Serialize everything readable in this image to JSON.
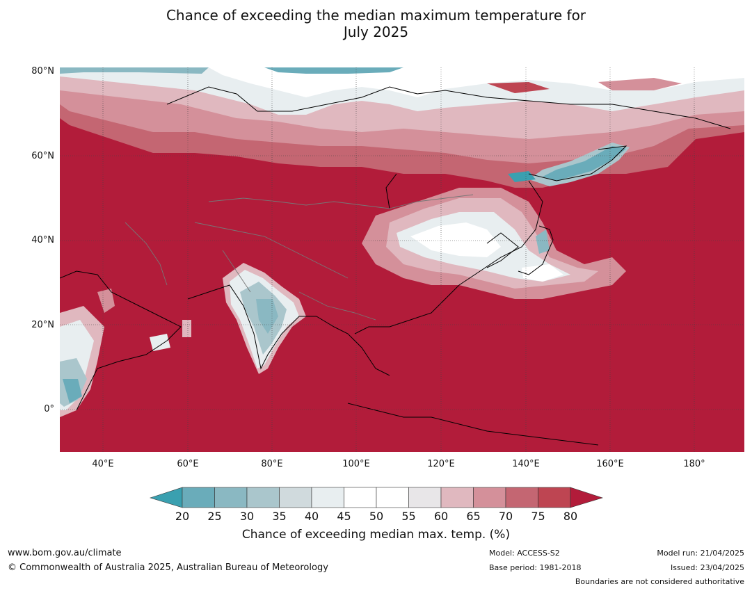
{
  "title_line1": "Chance of exceeding the median maximum temperature for",
  "title_line2": "July 2025",
  "latitude_labels": [
    "80°N",
    "60°N",
    "40°N",
    "20°N",
    "0°"
  ],
  "longitude_labels": [
    "40°E",
    "60°E",
    "80°E",
    "100°E",
    "120°E",
    "140°E",
    "160°E",
    "180°"
  ],
  "colorbar": {
    "ticks": [
      "20",
      "25",
      "30",
      "35",
      "40",
      "45",
      "50",
      "55",
      "60",
      "65",
      "70",
      "75",
      "80"
    ],
    "colors": [
      "#3aa0b0",
      "#6aacba",
      "#8ab8c2",
      "#aac6cc",
      "#d0dadd",
      "#e8eef0",
      "#ffffff",
      "#ffffff",
      "#e8e6e8",
      "#e0b8bf",
      "#d4909a",
      "#c46672",
      "#be4552",
      "#b21c3a"
    ],
    "label": "Chance of exceeding median max. temp. (%)"
  },
  "map_colors": {
    "ocean_high": "#b21c3a",
    "mid_red": "#c46672",
    "pink": "#d4909a",
    "light_pink": "#e0b8bf",
    "white": "#ffffff",
    "light_grey": "#e8eef0",
    "teal": "#3aa0b0"
  },
  "footer": {
    "website": "www.bom.gov.au/climate",
    "copyright": "© Commonwealth of Australia 2025, Australian Bureau of Meteorology",
    "model": "Model: ACCESS-S2",
    "base_period": "Base period: 1981-2018",
    "model_run": "Model run: 21/04/2025",
    "issued": "Issued: 23/04/2025",
    "disclaimer": "Boundaries are not considered authoritative"
  }
}
